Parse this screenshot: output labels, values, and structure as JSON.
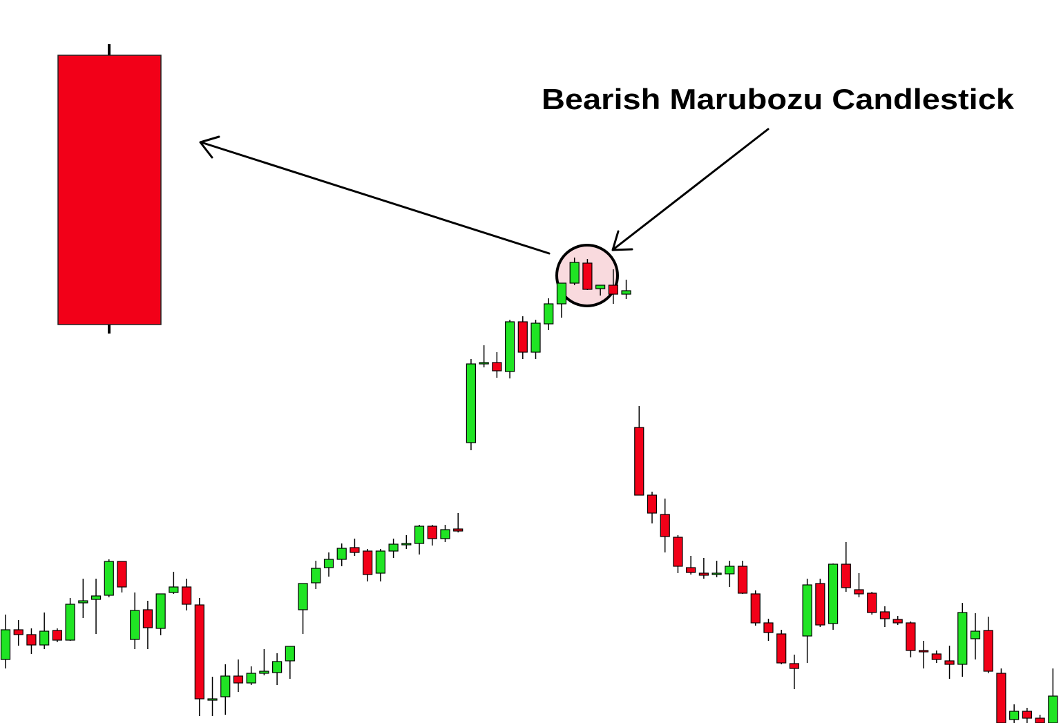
{
  "chart_data": {
    "type": "candlestick",
    "title": "Bearish Marubozu Candlestick",
    "up_color": "#20e424",
    "down_color": "#f20018",
    "ylim": [
      0,
      1047
    ],
    "open": [
      92,
      135,
      128,
      113,
      134,
      120,
      174,
      179,
      185,
      234,
      121,
      164,
      137,
      189,
      197,
      171,
      34,
      38,
      68,
      58,
      72,
      73,
      90,
      164,
      203,
      225,
      237,
      254,
      249,
      217,
      249,
      259,
      260,
      285,
      267,
      281,
      406,
      521,
      522,
      509,
      581,
      537,
      578,
      607,
      637,
      666,
      629,
      634,
      621,
      428,
      330,
      302,
      269,
      225,
      217,
      215,
      216,
      227,
      187,
      145,
      129,
      86,
      126,
      202,
      144,
      230,
      193,
      188,
      161,
      150,
      145,
      105,
      100,
      90,
      85,
      122,
      134,
      72,
      5,
      17,
      7,
      0
    ],
    "high": [
      157,
      149,
      137,
      160,
      137,
      181,
      209,
      209,
      237,
      234,
      189,
      177,
      187,
      219,
      209,
      181,
      67,
      85,
      92,
      82,
      107,
      101,
      111,
      202,
      235,
      247,
      260,
      267,
      252,
      252,
      267,
      272,
      287,
      287,
      287,
      304,
      527,
      547,
      537,
      584,
      589,
      584,
      615,
      637,
      674,
      672,
      634,
      657,
      642,
      459,
      335,
      325,
      272,
      242,
      239,
      235,
      235,
      235,
      192,
      151,
      135,
      99,
      209,
      209,
      231,
      262,
      217,
      190,
      169,
      155,
      147,
      119,
      105,
      112,
      174,
      159,
      154,
      79,
      27,
      22,
      12,
      79
    ],
    "low": [
      79,
      112,
      100,
      107,
      117,
      119,
      152,
      129,
      182,
      189,
      107,
      107,
      127,
      187,
      163,
      10,
      10,
      12,
      45,
      55,
      69,
      55,
      64,
      129,
      194,
      212,
      227,
      242,
      205,
      205,
      239,
      252,
      244,
      257,
      262,
      276,
      395,
      515,
      500,
      499,
      527,
      527,
      569,
      587,
      634,
      627,
      619,
      607,
      614,
      330,
      289,
      247,
      217,
      215,
      209,
      211,
      197,
      187,
      141,
      119,
      85,
      49,
      87,
      139,
      135,
      190,
      182,
      157,
      139,
      142,
      95,
      79,
      87,
      64,
      67,
      92,
      72,
      0,
      0,
      0,
      0,
      0
    ],
    "close": [
      135,
      128,
      113,
      133,
      120,
      172,
      177,
      184,
      234,
      197,
      163,
      138,
      187,
      197,
      172,
      35,
      35,
      68,
      58,
      72,
      75,
      89,
      111,
      202,
      224,
      237,
      253,
      247,
      215,
      249,
      259,
      260,
      285,
      267,
      280,
      278,
      520,
      522,
      510,
      581,
      537,
      579,
      607,
      637,
      667,
      628,
      634,
      621,
      626,
      330,
      304,
      270,
      227,
      218,
      214,
      217,
      227,
      188,
      145,
      131,
      87,
      79,
      200,
      142,
      230,
      196,
      187,
      160,
      151,
      145,
      105,
      104,
      92,
      85,
      160,
      133,
      75,
      0,
      17,
      7,
      0,
      39
    ]
  }
}
